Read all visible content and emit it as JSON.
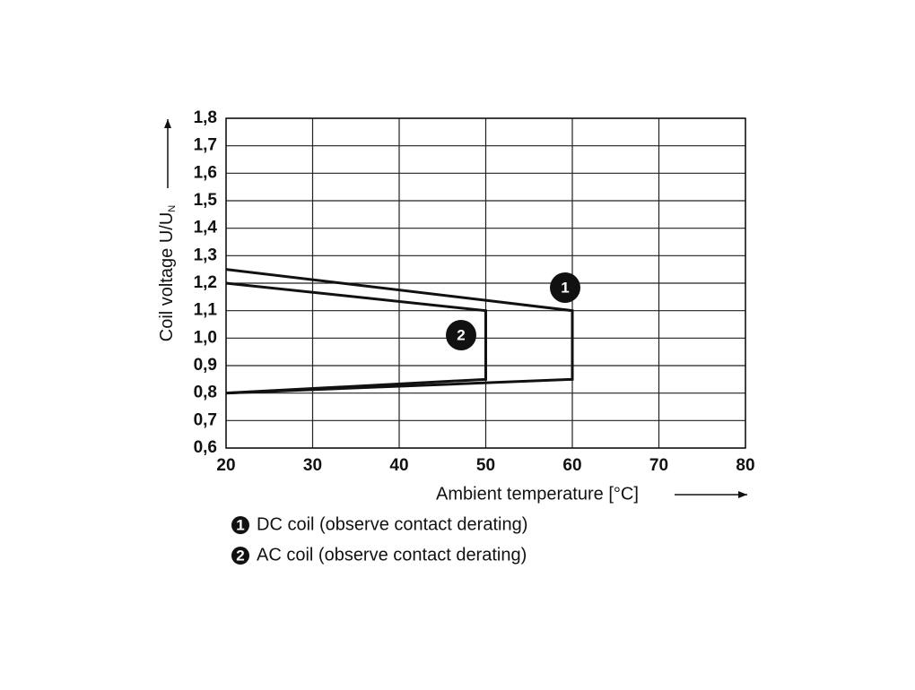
{
  "chart_data": {
    "type": "line",
    "x_label": "Ambient temperature [°C]",
    "y_label": "Coil voltage U/U",
    "y_label_subscript": "N",
    "xlim": [
      20,
      80
    ],
    "xticks": [
      20,
      30,
      40,
      50,
      60,
      70,
      80
    ],
    "ylim": [
      0.6,
      1.8
    ],
    "yticks": [
      {
        "value": 0.6,
        "label": "0,6"
      },
      {
        "value": 0.7,
        "label": "0,7"
      },
      {
        "value": 0.8,
        "label": "0,8"
      },
      {
        "value": 0.9,
        "label": "0,9"
      },
      {
        "value": 1.0,
        "label": "1,0"
      },
      {
        "value": 1.1,
        "label": "1,1"
      },
      {
        "value": 1.2,
        "label": "1,2"
      },
      {
        "value": 1.3,
        "label": "1,3"
      },
      {
        "value": 1.4,
        "label": "1,4"
      },
      {
        "value": 1.5,
        "label": "1,5"
      },
      {
        "value": 1.6,
        "label": "1,6"
      },
      {
        "value": 1.7,
        "label": "1,7"
      },
      {
        "value": 1.8,
        "label": "1,8"
      }
    ],
    "grid": true,
    "series": [
      {
        "name": "DC coil (observe contact derating)",
        "marker": "1",
        "color": "#111111",
        "x": [
          20,
          60,
          60,
          20
        ],
        "values": [
          1.25,
          1.1,
          0.85,
          0.8
        ]
      },
      {
        "name": "AC coil (observe contact derating)",
        "marker": "2",
        "color": "#111111",
        "x": [
          20,
          50,
          50,
          20
        ],
        "values": [
          1.2,
          1.1,
          0.85,
          0.8
        ]
      }
    ]
  }
}
